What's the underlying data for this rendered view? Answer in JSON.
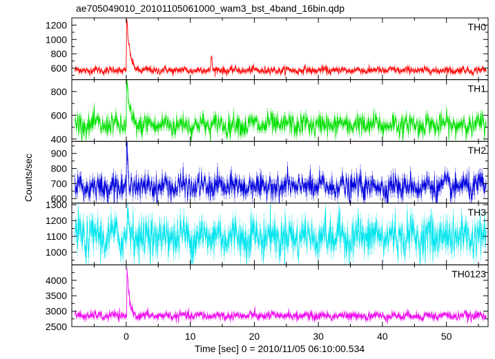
{
  "chart_data": {
    "type": "line",
    "title": "ae705049010_20101105061000_wam3_bst_4band_16bin.qdp",
    "xlabel": "Time [sec] 0 = 2010/11/05 06:10:00.534",
    "ylabel": "Counts/sec",
    "xlim": [
      -8.5,
      56.5
    ],
    "x_ticks": [
      0,
      10,
      20,
      30,
      40,
      50
    ],
    "time_step": 0.0625,
    "grid": false,
    "legend": "none",
    "panels": [
      {
        "name": "TH0",
        "color": "#ff0000",
        "ylim": [
          440,
          1300
        ],
        "y_ticks": [
          600,
          800,
          1000,
          1200
        ],
        "baseline": 570,
        "noise": 25,
        "peak": {
          "x": 0.1,
          "y": 1280,
          "decay": 0.45
        },
        "secondary_bump": {
          "x": 13.3,
          "y": 780
        },
        "error_bar": 22
      },
      {
        "name": "TH1",
        "color": "#00e000",
        "ylim": [
          380,
          900
        ],
        "y_ticks": [
          400,
          600,
          800
        ],
        "baseline": 520,
        "noise": 45,
        "peak": {
          "x": 0.1,
          "y": 890,
          "decay": 0.35
        },
        "error_bar": 28
      },
      {
        "name": "TH2",
        "color": "#0000dd",
        "ylim": [
          570,
          980
        ],
        "y_ticks": [
          600,
          700,
          800,
          900
        ],
        "baseline": 680,
        "noise": 40,
        "peak": {
          "x": 0.1,
          "y": 960,
          "decay": 0.2
        },
        "error_bar": 30
      },
      {
        "name": "TH3",
        "color": "#00e5ee",
        "ylim": [
          920,
          1310
        ],
        "y_ticks": [
          1000,
          1100,
          1200,
          1300
        ],
        "baseline": 1100,
        "noise": 60,
        "peak": {
          "x": 0.2,
          "y": 1290,
          "decay": 0.2
        },
        "error_bar": 40
      },
      {
        "name": "TH0123",
        "color": "#ee00ee",
        "ylim": [
          2500,
          4500
        ],
        "y_ticks": [
          2500,
          3000,
          3500,
          4000
        ],
        "baseline": 2850,
        "noise": 70,
        "peak": {
          "x": 0.15,
          "y": 4350,
          "decay": 0.35
        },
        "error_bar": 55
      }
    ]
  }
}
